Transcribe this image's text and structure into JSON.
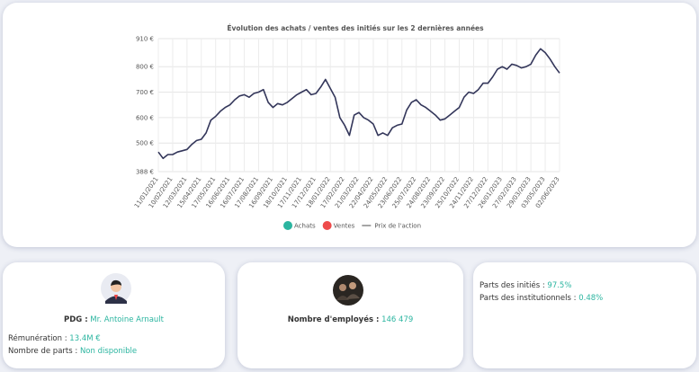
{
  "chart_data": {
    "type": "line",
    "title": "Évolution des achats / ventes des initiés sur les 2 dernières années",
    "categories": [
      "11/01/2021",
      null,
      null,
      "10/02/2021",
      null,
      null,
      "12/03/2021",
      null,
      null,
      "15/04/2021",
      null,
      null,
      "17/05/2021",
      null,
      null,
      "16/06/2021",
      null,
      null,
      "16/07/2021",
      null,
      null,
      "17/08/2021",
      null,
      null,
      "16/09/2021",
      null,
      null,
      "18/10/2021",
      null,
      null,
      "17/11/2021",
      null,
      null,
      "17/12/2021",
      null,
      null,
      "18/01/2022",
      null,
      null,
      "17/02/2022",
      null,
      null,
      "21/03/2022",
      null,
      null,
      "22/04/2022",
      null,
      null,
      "24/05/2022",
      null,
      null,
      "23/06/2022",
      null,
      null,
      "25/07/2022",
      null,
      null,
      "24/08/2022",
      null,
      null,
      "23/09/2022",
      null,
      null,
      "25/10/2022",
      null,
      null,
      "24/11/2022",
      null,
      null,
      "27/12/2022",
      null,
      null,
      "26/01/2023",
      null,
      null,
      "27/02/2023",
      null,
      null,
      "29/03/2023",
      null,
      null,
      "03/05/2023",
      null,
      null,
      "02/06/2023"
    ],
    "series": [
      {
        "name": "Prix de l'action",
        "color": "#33365a",
        "values": [
          465,
          440,
          455,
          455,
          465,
          470,
          475,
          495,
          510,
          515,
          540,
          590,
          605,
          625,
          640,
          650,
          670,
          685,
          690,
          680,
          695,
          700,
          710,
          660,
          640,
          655,
          650,
          660,
          675,
          690,
          700,
          710,
          690,
          695,
          720,
          750,
          715,
          680,
          600,
          570,
          530,
          610,
          620,
          600,
          590,
          575,
          530,
          540,
          530,
          560,
          570,
          575,
          630,
          660,
          670,
          650,
          640,
          625,
          610,
          590,
          595,
          610,
          625,
          640,
          680,
          700,
          695,
          710,
          735,
          735,
          760,
          790,
          800,
          790,
          810,
          805,
          795,
          800,
          810,
          845,
          870,
          855,
          830,
          800,
          775
        ]
      }
    ],
    "markers": [
      {
        "name": "Achats",
        "color": "#2bb5a0"
      },
      {
        "name": "Ventes",
        "color": "#ee4b4b"
      }
    ],
    "ylim": [
      388,
      910
    ],
    "yticks": [
      {
        "value": 388,
        "label": "388 €"
      },
      {
        "value": 500,
        "label": "500 €"
      },
      {
        "value": 600,
        "label": "600 €"
      },
      {
        "value": 700,
        "label": "700 €"
      },
      {
        "value": 800,
        "label": "800 €"
      },
      {
        "value": 910,
        "label": "910 €"
      }
    ],
    "grid": true
  },
  "ceo": {
    "label": "PDG :",
    "name": "Mr. Antoine Arnault",
    "pay_label": "Rémunération :",
    "pay": "13.4M €",
    "shares_label": "Nombre de parts :",
    "shares": "Non disponible"
  },
  "employees": {
    "label": "Nombre d'employés :",
    "value": "146 479"
  },
  "ownership": {
    "insiders_label": "Parts des initiés :",
    "insiders": "97.5%",
    "institutions_label": "Parts des institutionnels :",
    "institutions": "0.48%"
  }
}
